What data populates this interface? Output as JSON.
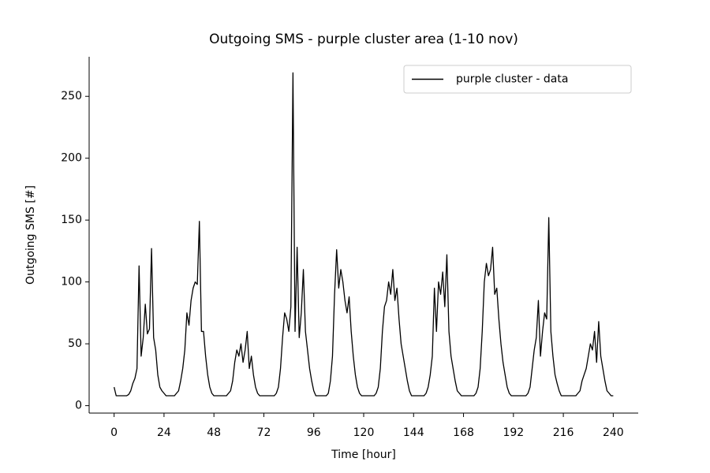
{
  "chart_data": {
    "type": "line",
    "title": "Outgoing SMS - purple cluster area (1-10 nov)",
    "x_label": "Time [hour]",
    "y_label": "Outgoing SMS [#]",
    "x": [
      0,
      1,
      2,
      3,
      4,
      5,
      6,
      7,
      8,
      9,
      10,
      11,
      12,
      13,
      14,
      15,
      16,
      17,
      18,
      19,
      20,
      21,
      22,
      23,
      24,
      25,
      26,
      27,
      28,
      29,
      30,
      31,
      32,
      33,
      34,
      35,
      36,
      37,
      38,
      39,
      40,
      41,
      42,
      43,
      44,
      45,
      46,
      47,
      48,
      49,
      50,
      51,
      52,
      53,
      54,
      55,
      56,
      57,
      58,
      59,
      60,
      61,
      62,
      63,
      64,
      65,
      66,
      67,
      68,
      69,
      70,
      71,
      72,
      73,
      74,
      75,
      76,
      77,
      78,
      79,
      80,
      81,
      82,
      83,
      84,
      85,
      86,
      87,
      88,
      89,
      90,
      91,
      92,
      93,
      94,
      95,
      96,
      97,
      98,
      99,
      100,
      101,
      102,
      103,
      104,
      105,
      106,
      107,
      108,
      109,
      110,
      111,
      112,
      113,
      114,
      115,
      116,
      117,
      118,
      119,
      120,
      121,
      122,
      123,
      124,
      125,
      126,
      127,
      128,
      129,
      130,
      131,
      132,
      133,
      134,
      135,
      136,
      137,
      138,
      139,
      140,
      141,
      142,
      143,
      144,
      145,
      146,
      147,
      148,
      149,
      150,
      151,
      152,
      153,
      154,
      155,
      156,
      157,
      158,
      159,
      160,
      161,
      162,
      163,
      164,
      165,
      166,
      167,
      168,
      169,
      170,
      171,
      172,
      173,
      174,
      175,
      176,
      177,
      178,
      179,
      180,
      181,
      182,
      183,
      184,
      185,
      186,
      187,
      188,
      189,
      190,
      191,
      192,
      193,
      194,
      195,
      196,
      197,
      198,
      199,
      200,
      201,
      202,
      203,
      204,
      205,
      206,
      207,
      208,
      209,
      210,
      211,
      212,
      213,
      214,
      215,
      216,
      217,
      218,
      219,
      220,
      221,
      222,
      223,
      224,
      225,
      226,
      227,
      228,
      229,
      230,
      231,
      232,
      233,
      234,
      235,
      236,
      237,
      238,
      239,
      240
    ],
    "series": [
      {
        "name": "purple cluster - data",
        "color": "#000000",
        "values": [
          15,
          8,
          8,
          8,
          8,
          8,
          8,
          9,
          12,
          18,
          22,
          30,
          113,
          40,
          55,
          82,
          58,
          62,
          127,
          55,
          45,
          25,
          15,
          12,
          10,
          8,
          8,
          8,
          8,
          8,
          10,
          12,
          20,
          30,
          45,
          75,
          65,
          85,
          95,
          100,
          98,
          149,
          60,
          60,
          40,
          25,
          15,
          10,
          8,
          8,
          8,
          8,
          8,
          8,
          8,
          10,
          12,
          20,
          35,
          45,
          40,
          50,
          35,
          45,
          60,
          30,
          40,
          25,
          15,
          10,
          8,
          8,
          8,
          8,
          8,
          8,
          8,
          8,
          10,
          15,
          30,
          55,
          75,
          70,
          60,
          80,
          269,
          60,
          128,
          55,
          75,
          110,
          60,
          45,
          30,
          20,
          12,
          8,
          8,
          8,
          8,
          8,
          8,
          10,
          20,
          40,
          90,
          126,
          95,
          110,
          100,
          85,
          75,
          88,
          60,
          40,
          25,
          15,
          10,
          8,
          8,
          8,
          8,
          8,
          8,
          8,
          10,
          15,
          30,
          60,
          80,
          85,
          100,
          90,
          110,
          85,
          95,
          70,
          50,
          40,
          30,
          20,
          12,
          8,
          8,
          8,
          8,
          8,
          8,
          8,
          10,
          15,
          25,
          40,
          95,
          60,
          100,
          90,
          108,
          80,
          122,
          60,
          40,
          30,
          20,
          12,
          10,
          8,
          8,
          8,
          8,
          8,
          8,
          8,
          10,
          15,
          30,
          60,
          100,
          115,
          105,
          110,
          128,
          90,
          95,
          70,
          50,
          35,
          25,
          15,
          10,
          8,
          8,
          8,
          8,
          8,
          8,
          8,
          8,
          10,
          15,
          30,
          45,
          55,
          85,
          40,
          60,
          75,
          70,
          152,
          60,
          40,
          25,
          18,
          12,
          8,
          8,
          8,
          8,
          8,
          8,
          8,
          8,
          10,
          12,
          20,
          25,
          30,
          40,
          50,
          45,
          60,
          35,
          68,
          40,
          30,
          20,
          12,
          10,
          8,
          8
        ]
      }
    ],
    "xlim": [
      -12,
      252
    ],
    "ylim": [
      -6,
      282
    ],
    "xticks": [
      0,
      24,
      48,
      72,
      96,
      120,
      144,
      168,
      192,
      216,
      240
    ],
    "yticks": [
      0,
      50,
      100,
      150,
      200,
      250
    ],
    "legend": "upper right"
  }
}
